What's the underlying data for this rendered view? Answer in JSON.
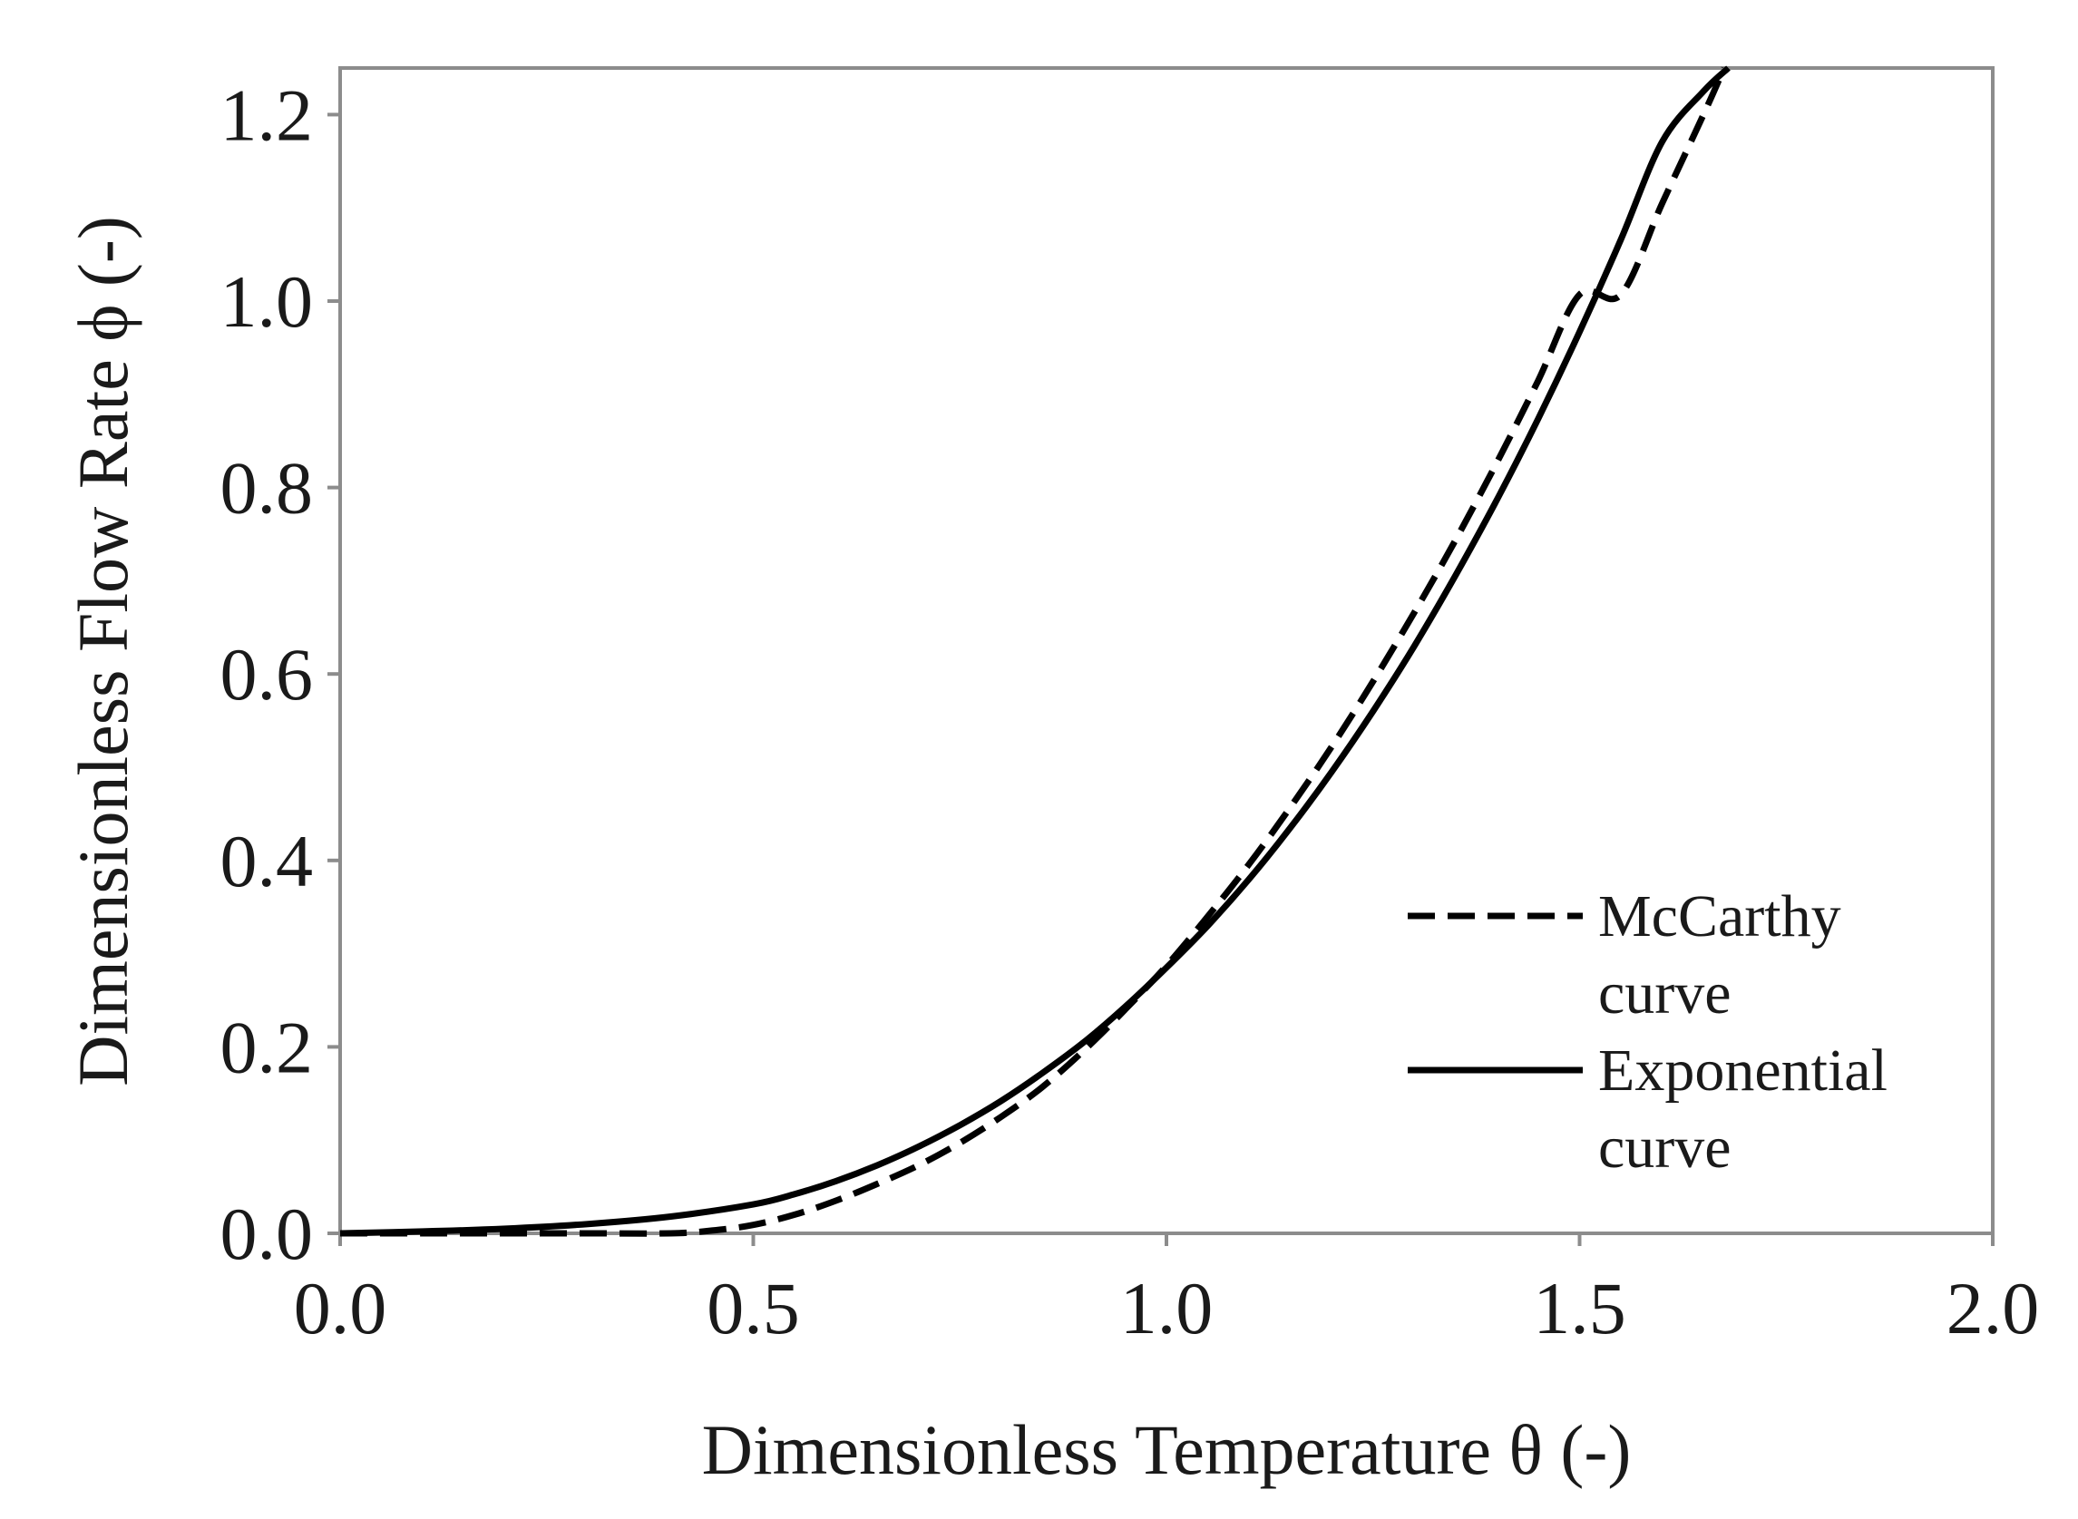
{
  "chart_data": {
    "type": "line",
    "title": "",
    "xlabel": "Dimensionless Temperature θ (-)",
    "ylabel": "Dimensionless Flow Rate   ϕ (-)",
    "xlim": [
      0.0,
      2.0
    ],
    "ylim": [
      0.0,
      1.25
    ],
    "x_ticks": [
      0.0,
      0.5,
      1.0,
      1.5,
      2.0
    ],
    "x_tick_labels": [
      "0.0",
      "0.5",
      "1.0",
      "1.5",
      "2.0"
    ],
    "y_ticks": [
      0.0,
      0.2,
      0.4,
      0.6,
      0.8,
      1.0,
      1.2
    ],
    "y_tick_labels": [
      "0.0",
      "0.2",
      "0.4",
      "0.6",
      "0.8",
      "1.0",
      "1.2"
    ],
    "grid": false,
    "legend_position": "lower-right",
    "series": [
      {
        "name": "McCarthy curve",
        "legend_lines": [
          "McCarthy",
          "curve"
        ],
        "style": "dashed",
        "color": "#000000",
        "x": [
          0.0,
          0.1,
          0.2,
          0.3,
          0.4,
          0.45,
          0.5,
          0.55,
          0.6,
          0.65,
          0.7,
          0.75,
          0.8,
          0.85,
          0.9,
          0.95,
          1.0,
          1.05,
          1.1,
          1.15,
          1.2,
          1.25,
          1.3,
          1.35,
          1.4,
          1.45,
          1.5,
          1.55,
          1.6,
          1.65,
          1.675
        ],
        "y": [
          0.0,
          0.0,
          0.0,
          0.0,
          0.0,
          0.003,
          0.009,
          0.02,
          0.035,
          0.053,
          0.073,
          0.097,
          0.125,
          0.157,
          0.196,
          0.24,
          0.287,
          0.34,
          0.396,
          0.457,
          0.522,
          0.592,
          0.666,
          0.744,
          0.827,
          0.915,
          1.007,
          1.0,
          1.105,
          1.2,
          1.25
        ]
      },
      {
        "name": "Exponential curve",
        "legend_lines": [
          "Exponential",
          "curve"
        ],
        "style": "solid",
        "color": "#000000",
        "x": [
          0.0,
          0.1,
          0.2,
          0.3,
          0.4,
          0.5,
          0.55,
          0.6,
          0.65,
          0.7,
          0.75,
          0.8,
          0.85,
          0.9,
          0.95,
          1.0,
          1.05,
          1.1,
          1.15,
          1.2,
          1.25,
          1.3,
          1.35,
          1.4,
          1.45,
          1.5,
          1.55,
          1.6,
          1.65,
          1.68
        ],
        "y": [
          0.0,
          0.002,
          0.005,
          0.01,
          0.018,
          0.031,
          0.042,
          0.056,
          0.073,
          0.093,
          0.116,
          0.142,
          0.172,
          0.205,
          0.243,
          0.285,
          0.33,
          0.38,
          0.435,
          0.495,
          0.56,
          0.63,
          0.706,
          0.787,
          0.874,
          0.967,
          1.066,
          1.171,
          1.225,
          1.25
        ]
      }
    ]
  }
}
